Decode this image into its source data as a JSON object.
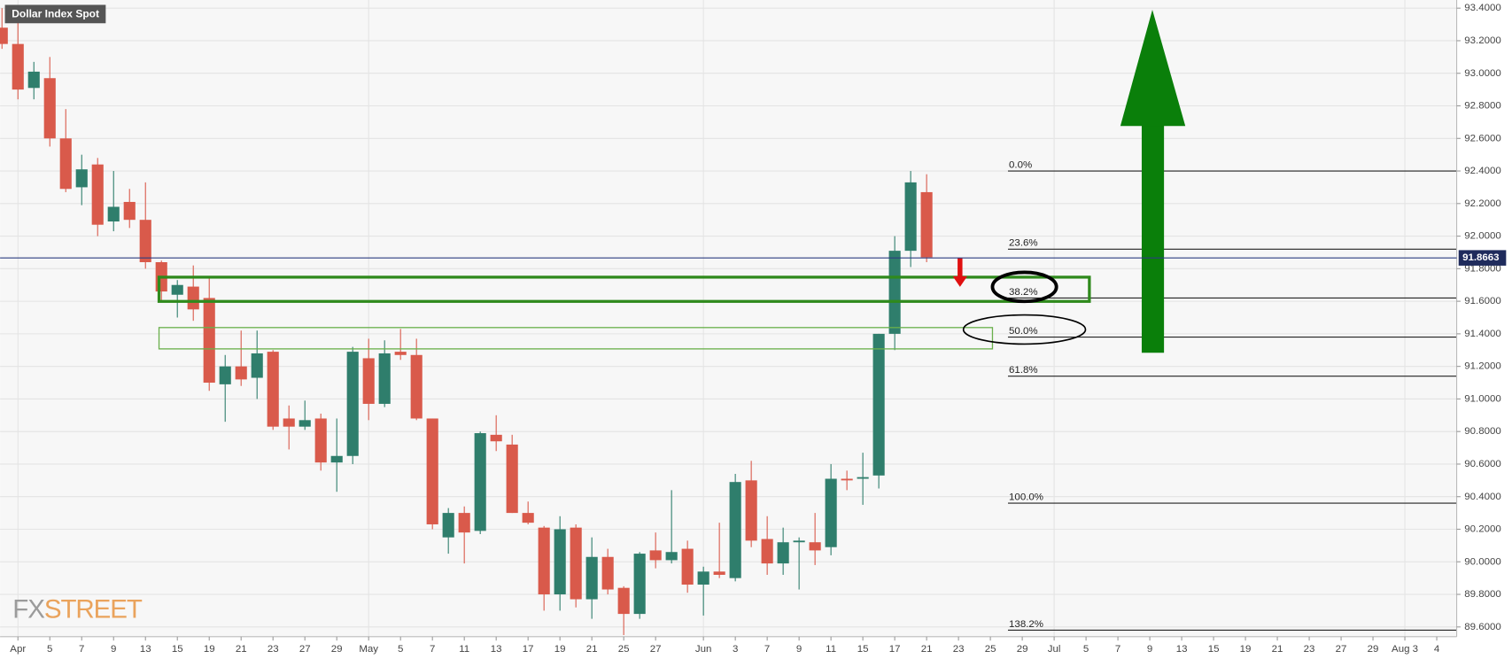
{
  "chart_data": {
    "type": "candlestick",
    "title": "Dollar Index Spot",
    "logo": {
      "fx": "FX",
      "street": "STREET"
    },
    "up_color": "#2f7e6c",
    "down_color": "#d95a4b",
    "grid": true,
    "open": [
      93.28,
      93.18,
      92.91,
      92.97,
      92.6,
      92.3,
      92.44,
      92.09,
      92.21,
      92.1,
      91.84,
      91.64,
      91.69,
      91.62,
      91.09,
      91.2,
      91.13,
      91.29,
      90.88,
      90.83,
      90.88,
      90.61,
      90.65,
      91.25,
      90.97,
      91.29,
      91.27,
      90.88,
      90.15,
      90.3,
      90.19,
      90.78,
      90.72,
      90.3,
      90.21,
      89.8,
      90.21,
      89.77,
      90.03,
      89.84,
      89.68,
      90.07,
      90.01,
      90.08,
      89.86,
      89.94,
      89.9,
      90.5,
      90.14,
      89.99,
      90.12,
      90.12,
      90.09,
      90.51,
      90.51,
      90.53,
      91.4,
      91.91,
      92.27
    ],
    "high": [
      93.4,
      93.32,
      93.07,
      93.1,
      92.78,
      92.5,
      92.48,
      92.4,
      92.29,
      92.33,
      91.85,
      91.73,
      91.82,
      91.75,
      91.27,
      91.42,
      91.42,
      91.3,
      90.96,
      90.99,
      90.91,
      90.88,
      91.32,
      91.37,
      91.36,
      91.43,
      91.37,
      90.88,
      90.33,
      90.34,
      90.8,
      90.9,
      90.78,
      90.37,
      90.22,
      90.28,
      90.23,
      90.15,
      90.08,
      89.85,
      90.06,
      90.18,
      90.44,
      90.13,
      89.97,
      90.24,
      90.54,
      90.62,
      90.28,
      90.21,
      90.15,
      90.3,
      90.6,
      90.56,
      90.67,
      91.4,
      92.0,
      92.4,
      92.38
    ],
    "low": [
      93.15,
      92.84,
      92.84,
      92.55,
      92.27,
      92.19,
      92.0,
      92.03,
      92.05,
      91.8,
      91.6,
      91.5,
      91.48,
      91.05,
      90.86,
      91.08,
      91.0,
      90.81,
      90.69,
      90.81,
      90.56,
      90.43,
      90.6,
      90.87,
      90.95,
      91.24,
      90.87,
      90.2,
      90.05,
      89.99,
      90.17,
      90.68,
      90.3,
      90.23,
      89.7,
      89.7,
      89.72,
      89.65,
      89.8,
      89.55,
      89.65,
      89.96,
      89.99,
      89.81,
      89.67,
      89.9,
      89.88,
      90.09,
      89.92,
      89.92,
      89.83,
      89.98,
      90.04,
      90.44,
      90.35,
      90.45,
      91.3,
      91.81,
      91.84
    ],
    "close": [
      93.18,
      92.9,
      93.01,
      92.6,
      92.29,
      92.41,
      92.07,
      92.18,
      92.1,
      91.84,
      91.66,
      91.7,
      91.55,
      91.1,
      91.2,
      91.12,
      91.28,
      90.83,
      90.83,
      90.87,
      90.61,
      90.65,
      91.29,
      90.97,
      91.28,
      91.27,
      90.88,
      90.23,
      90.3,
      90.18,
      90.79,
      90.74,
      90.3,
      90.24,
      89.8,
      90.2,
      89.77,
      90.03,
      89.83,
      89.68,
      90.05,
      90.01,
      90.06,
      89.86,
      89.94,
      89.92,
      90.49,
      90.13,
      89.99,
      90.12,
      90.13,
      90.07,
      90.51,
      90.5,
      90.52,
      91.4,
      91.91,
      92.33,
      91.87
    ],
    "xlim": [
      -0.12,
      91.25
    ],
    "xticks": [
      {
        "value": 1,
        "label": "Apr"
      },
      {
        "value": 3,
        "label": "5"
      },
      {
        "value": 5,
        "label": "7"
      },
      {
        "value": 7,
        "label": "9"
      },
      {
        "value": 9,
        "label": "13"
      },
      {
        "value": 11,
        "label": "15"
      },
      {
        "value": 13,
        "label": "19"
      },
      {
        "value": 15,
        "label": "21"
      },
      {
        "value": 17,
        "label": "23"
      },
      {
        "value": 19,
        "label": "27"
      },
      {
        "value": 21,
        "label": "29"
      },
      {
        "value": 23,
        "label": "May"
      },
      {
        "value": 25,
        "label": "5"
      },
      {
        "value": 27,
        "label": "7"
      },
      {
        "value": 29,
        "label": "11"
      },
      {
        "value": 31,
        "label": "13"
      },
      {
        "value": 33,
        "label": "17"
      },
      {
        "value": 35,
        "label": "19"
      },
      {
        "value": 37,
        "label": "21"
      },
      {
        "value": 39,
        "label": "25"
      },
      {
        "value": 41,
        "label": "27"
      },
      {
        "value": 44,
        "label": "Jun"
      },
      {
        "value": 46,
        "label": "3"
      },
      {
        "value": 48,
        "label": "7"
      },
      {
        "value": 50,
        "label": "9"
      },
      {
        "value": 52,
        "label": "11"
      },
      {
        "value": 54,
        "label": "15"
      },
      {
        "value": 56,
        "label": "17"
      },
      {
        "value": 58,
        "label": "21"
      },
      {
        "value": 60,
        "label": "23"
      },
      {
        "value": 62,
        "label": "25"
      },
      {
        "value": 64,
        "label": "29"
      },
      {
        "value": 66,
        "label": "Jul"
      },
      {
        "value": 68,
        "label": "5"
      },
      {
        "value": 70,
        "label": "7"
      },
      {
        "value": 72,
        "label": "9"
      },
      {
        "value": 74,
        "label": "13"
      },
      {
        "value": 76,
        "label": "15"
      },
      {
        "value": 78,
        "label": "19"
      },
      {
        "value": 80,
        "label": "21"
      },
      {
        "value": 82,
        "label": "23"
      },
      {
        "value": 84,
        "label": "27"
      },
      {
        "value": 86,
        "label": "29"
      },
      {
        "value": 88,
        "label": "Aug 3"
      },
      {
        "value": 90,
        "label": "4"
      }
    ],
    "ylim": [
      89.54,
      93.45
    ],
    "yticks": [
      {
        "value": 89.6,
        "label": "89.6000"
      },
      {
        "value": 89.8,
        "label": "89.8000"
      },
      {
        "value": 90.0,
        "label": "90.0000"
      },
      {
        "value": 90.2,
        "label": "90.2000"
      },
      {
        "value": 90.4,
        "label": "90.4000"
      },
      {
        "value": 90.6,
        "label": "90.6000"
      },
      {
        "value": 90.8,
        "label": "90.8000"
      },
      {
        "value": 91.0,
        "label": "91.0000"
      },
      {
        "value": 91.2,
        "label": "91.2000"
      },
      {
        "value": 91.4,
        "label": "91.4000"
      },
      {
        "value": 91.6,
        "label": "91.6000"
      },
      {
        "value": 91.8,
        "label": "91.8000"
      },
      {
        "value": 92.0,
        "label": "92.0000"
      },
      {
        "value": 92.2,
        "label": "92.2000"
      },
      {
        "value": 92.4,
        "label": "92.4000"
      },
      {
        "value": 92.6,
        "label": "92.6000"
      },
      {
        "value": 92.8,
        "label": "92.8000"
      },
      {
        "value": 93.0,
        "label": "93.0000"
      },
      {
        "value": 93.2,
        "label": "93.2000"
      },
      {
        "value": 93.4,
        "label": "93.4000"
      }
    ],
    "last_price": 91.8663,
    "fibonacci": [
      {
        "label": "0.0%",
        "value": 92.4
      },
      {
        "label": "23.6%",
        "value": 91.92
      },
      {
        "label": "38.2%",
        "value": 91.62
      },
      {
        "label": "50.0%",
        "value": 91.38
      },
      {
        "label": "61.8%",
        "value": 91.14
      },
      {
        "label": "100.0%",
        "value": 90.36
      },
      {
        "label": "138.2%",
        "value": 89.58
      }
    ]
  }
}
